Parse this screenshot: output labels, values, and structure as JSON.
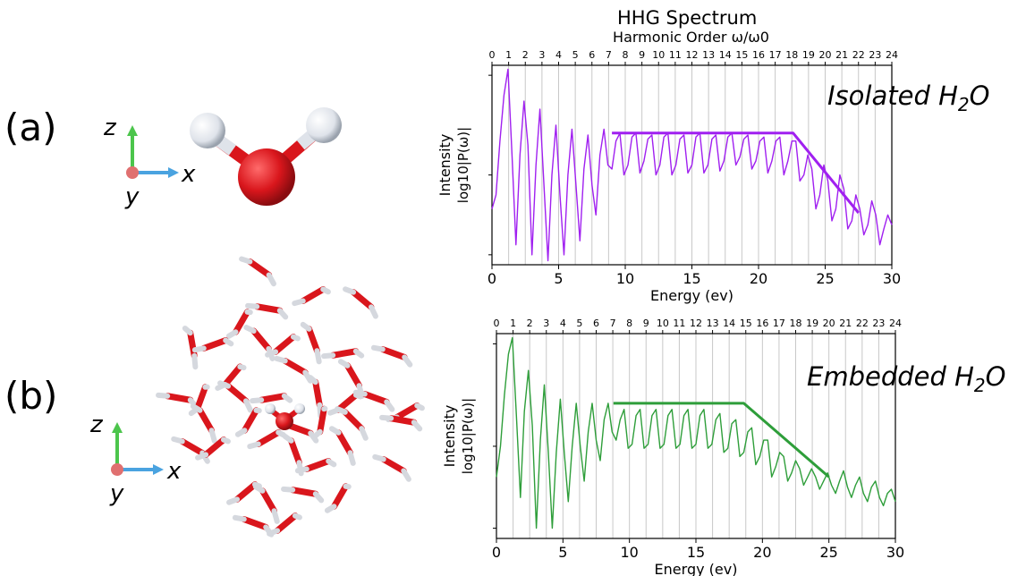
{
  "figure": {
    "title": "HHG Spectrum",
    "panel_a_label": "(a)",
    "panel_b_label": "(b)",
    "axis_glyphs": {
      "z": "z",
      "x": "x",
      "y": "y"
    },
    "colors": {
      "isolated": "#a020f0",
      "embedded": "#2e9e3a",
      "oxygen": "#d9161c",
      "hydrogen": "#e6e6ea",
      "axis_z": "#4cc54c",
      "axis_x": "#4aa3e0",
      "axis_origin": "#e07070"
    }
  },
  "chart_data": [
    {
      "type": "line",
      "title": "HHG Spectrum",
      "annotation": {
        "prefix": "Isolated H",
        "sub": "2",
        "suffix": "O"
      },
      "xlabel": "Energy (ev)",
      "ylabel_line1": "Intensity",
      "ylabel_line2": "log10|P(ω)|",
      "top_xlabel": "Harmonic Order ω/ω0",
      "xlim": [
        0,
        30
      ],
      "ylim": [
        0,
        1
      ],
      "xticks": [
        "0",
        "5",
        "10",
        "15",
        "20",
        "25",
        "30"
      ],
      "harmonic_ticks": [
        "0",
        "1",
        "2",
        "3",
        "4",
        "5",
        "6",
        "7",
        "8",
        "9",
        "10",
        "11",
        "12",
        "13",
        "14",
        "15",
        "16",
        "17",
        "18",
        "19",
        "20",
        "21",
        "22",
        "23",
        "24"
      ],
      "harmonic_energy_step": 1.25,
      "grid": "vertical at harmonics",
      "series": [
        {
          "color": "#a020f0",
          "x": [
            0,
            0.3,
            0.6,
            0.9,
            1.2,
            1.5,
            1.8,
            2.1,
            2.4,
            2.7,
            3.0,
            3.3,
            3.6,
            3.9,
            4.2,
            4.5,
            4.8,
            5.1,
            5.4,
            5.7,
            6.0,
            6.3,
            6.6,
            6.9,
            7.2,
            7.5,
            7.8,
            8.1,
            8.4,
            8.7,
            9.0,
            9.3,
            9.6,
            9.9,
            10.2,
            10.5,
            10.8,
            11.1,
            11.4,
            11.7,
            12.0,
            12.3,
            12.6,
            12.9,
            13.2,
            13.5,
            13.8,
            14.1,
            14.4,
            14.7,
            15.0,
            15.3,
            15.6,
            15.9,
            16.2,
            16.5,
            16.8,
            17.1,
            17.4,
            17.7,
            18.0,
            18.3,
            18.6,
            18.9,
            19.2,
            19.5,
            19.8,
            20.1,
            20.4,
            20.7,
            21.0,
            21.3,
            21.6,
            21.9,
            22.2,
            22.5,
            22.8,
            23.1,
            23.4,
            23.7,
            24.0,
            24.3,
            24.6,
            24.9,
            25.2,
            25.5,
            25.8,
            26.1,
            26.4,
            26.7,
            27.0,
            27.3,
            27.6,
            27.9,
            28.2,
            28.5,
            28.8,
            29.1,
            29.4,
            29.7,
            30.0
          ],
          "y": [
            0.28,
            0.35,
            0.62,
            0.85,
            0.98,
            0.55,
            0.1,
            0.55,
            0.82,
            0.6,
            0.05,
            0.5,
            0.78,
            0.4,
            0.02,
            0.45,
            0.7,
            0.35,
            0.05,
            0.45,
            0.68,
            0.4,
            0.12,
            0.48,
            0.65,
            0.4,
            0.25,
            0.55,
            0.68,
            0.5,
            0.48,
            0.62,
            0.66,
            0.45,
            0.5,
            0.64,
            0.66,
            0.46,
            0.52,
            0.63,
            0.65,
            0.45,
            0.5,
            0.64,
            0.66,
            0.45,
            0.5,
            0.63,
            0.65,
            0.46,
            0.5,
            0.64,
            0.66,
            0.46,
            0.5,
            0.63,
            0.65,
            0.47,
            0.52,
            0.64,
            0.66,
            0.5,
            0.54,
            0.63,
            0.65,
            0.48,
            0.52,
            0.62,
            0.64,
            0.46,
            0.52,
            0.62,
            0.64,
            0.45,
            0.52,
            0.62,
            0.62,
            0.42,
            0.45,
            0.55,
            0.48,
            0.28,
            0.35,
            0.5,
            0.42,
            0.22,
            0.28,
            0.45,
            0.38,
            0.18,
            0.22,
            0.35,
            0.28,
            0.15,
            0.2,
            0.32,
            0.25,
            0.1,
            0.18,
            0.25,
            0.2
          ]
        },
        {
          "color": "#a020f0",
          "role": "cutoff-guide",
          "x": [
            9,
            22.6,
            27.5
          ],
          "y": [
            0.66,
            0.66,
            0.26
          ]
        }
      ]
    },
    {
      "type": "line",
      "annotation": {
        "prefix": "Embedded H",
        "sub": "2",
        "suffix": "O"
      },
      "xlabel": "Energy (ev)",
      "ylabel_line1": "Intensity",
      "ylabel_line2": "log10|P(ω)|",
      "xlim": [
        0,
        30
      ],
      "ylim": [
        0,
        1
      ],
      "xticks": [
        "0",
        "5",
        "10",
        "15",
        "20",
        "25",
        "30"
      ],
      "harmonic_ticks": [
        "0",
        "1",
        "2",
        "3",
        "4",
        "5",
        "6",
        "7",
        "8",
        "9",
        "10",
        "11",
        "12",
        "13",
        "14",
        "15",
        "16",
        "17",
        "18",
        "19",
        "20",
        "21",
        "22",
        "23",
        "24"
      ],
      "harmonic_energy_step": 1.25,
      "grid": "vertical at harmonics",
      "series": [
        {
          "color": "#2e9e3a",
          "x": [
            0,
            0.3,
            0.6,
            0.9,
            1.2,
            1.5,
            1.8,
            2.1,
            2.4,
            2.7,
            3.0,
            3.3,
            3.6,
            3.9,
            4.2,
            4.5,
            4.8,
            5.1,
            5.4,
            5.7,
            6.0,
            6.3,
            6.6,
            6.9,
            7.2,
            7.5,
            7.8,
            8.1,
            8.4,
            8.7,
            9.0,
            9.3,
            9.6,
            9.9,
            10.2,
            10.5,
            10.8,
            11.1,
            11.4,
            11.7,
            12.0,
            12.3,
            12.6,
            12.9,
            13.2,
            13.5,
            13.8,
            14.1,
            14.4,
            14.7,
            15.0,
            15.3,
            15.6,
            15.9,
            16.2,
            16.5,
            16.8,
            17.1,
            17.4,
            17.7,
            18.0,
            18.3,
            18.6,
            18.9,
            19.2,
            19.5,
            19.8,
            20.1,
            20.4,
            20.7,
            21.0,
            21.3,
            21.6,
            21.9,
            22.2,
            22.5,
            22.8,
            23.1,
            23.4,
            23.7,
            24.0,
            24.3,
            24.6,
            24.9,
            25.2,
            25.5,
            25.8,
            26.1,
            26.4,
            26.7,
            27.0,
            27.3,
            27.6,
            27.9,
            28.2,
            28.5,
            28.8,
            29.1,
            29.4,
            29.7,
            30.0
          ],
          "y": [
            0.3,
            0.45,
            0.7,
            0.9,
            0.98,
            0.6,
            0.2,
            0.62,
            0.82,
            0.55,
            0.05,
            0.48,
            0.75,
            0.42,
            0.05,
            0.42,
            0.68,
            0.42,
            0.18,
            0.45,
            0.66,
            0.45,
            0.28,
            0.52,
            0.66,
            0.48,
            0.38,
            0.58,
            0.66,
            0.52,
            0.48,
            0.58,
            0.63,
            0.44,
            0.46,
            0.6,
            0.63,
            0.44,
            0.46,
            0.6,
            0.63,
            0.44,
            0.46,
            0.6,
            0.63,
            0.44,
            0.46,
            0.6,
            0.63,
            0.44,
            0.46,
            0.6,
            0.63,
            0.44,
            0.46,
            0.58,
            0.61,
            0.42,
            0.44,
            0.56,
            0.58,
            0.4,
            0.42,
            0.52,
            0.54,
            0.36,
            0.4,
            0.48,
            0.48,
            0.3,
            0.35,
            0.42,
            0.4,
            0.28,
            0.32,
            0.38,
            0.34,
            0.26,
            0.3,
            0.34,
            0.3,
            0.24,
            0.28,
            0.32,
            0.26,
            0.22,
            0.28,
            0.33,
            0.25,
            0.2,
            0.26,
            0.3,
            0.22,
            0.18,
            0.25,
            0.28,
            0.2,
            0.16,
            0.22,
            0.24,
            0.18
          ]
        },
        {
          "color": "#2e9e3a",
          "role": "cutoff-guide",
          "x": [
            8.8,
            18.6,
            25
          ],
          "y": [
            0.66,
            0.66,
            0.3
          ]
        }
      ]
    }
  ]
}
